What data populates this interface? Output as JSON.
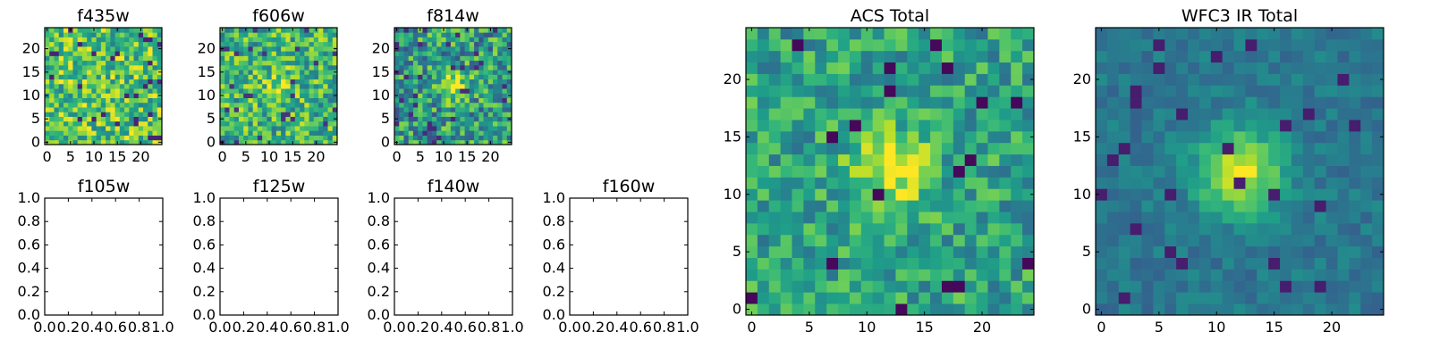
{
  "chart_data": [
    {
      "type": "heatmap",
      "title": "f435w",
      "grid_size": 25,
      "xlim": [
        -0.5,
        24.5
      ],
      "ylim": [
        -0.5,
        24.5
      ],
      "xticks": [
        0,
        5,
        10,
        15,
        20
      ],
      "yticks": [
        0,
        5,
        10,
        15,
        20
      ],
      "colormap": "viridis",
      "cells": "noise field, 25x25 pixels, mostly green-yellow"
    },
    {
      "type": "heatmap",
      "title": "f606w",
      "grid_size": 25,
      "xlim": [
        -0.5,
        24.5
      ],
      "ylim": [
        -0.5,
        24.5
      ],
      "xticks": [
        0,
        5,
        10,
        15,
        20
      ],
      "yticks": [
        0,
        5,
        10,
        15,
        20
      ],
      "colormap": "viridis",
      "cells": "noise field with faint source near (12, 12)"
    },
    {
      "type": "heatmap",
      "title": "f814w",
      "grid_size": 25,
      "xlim": [
        -0.5,
        24.5
      ],
      "ylim": [
        -0.5,
        24.5
      ],
      "xticks": [
        0,
        5,
        10,
        15,
        20
      ],
      "yticks": [
        0,
        5,
        10,
        15,
        20
      ],
      "colormap": "viridis",
      "cells": "noise field with source near (12, 12)"
    },
    {
      "type": "heatmap",
      "title": "f105w",
      "xlim": [
        0,
        1
      ],
      "ylim": [
        0,
        1
      ],
      "xticks": [
        "0.0",
        "0.2",
        "0.4",
        "0.6",
        "0.8",
        "1.0"
      ],
      "yticks": [
        "0.0",
        "0.2",
        "0.4",
        "0.6",
        "0.8",
        "1.0"
      ],
      "empty": true
    },
    {
      "type": "heatmap",
      "title": "f125w",
      "xlim": [
        0,
        1
      ],
      "ylim": [
        0,
        1
      ],
      "xticks": [
        "0.0",
        "0.2",
        "0.4",
        "0.6",
        "0.8",
        "1.0"
      ],
      "yticks": [
        "0.0",
        "0.2",
        "0.4",
        "0.6",
        "0.8",
        "1.0"
      ],
      "empty": true
    },
    {
      "type": "heatmap",
      "title": "f140w",
      "xlim": [
        0,
        1
      ],
      "ylim": [
        0,
        1
      ],
      "xticks": [
        "0.0",
        "0.2",
        "0.4",
        "0.6",
        "0.8",
        "1.0"
      ],
      "yticks": [
        "0.0",
        "0.2",
        "0.4",
        "0.6",
        "0.8",
        "1.0"
      ],
      "empty": true
    },
    {
      "type": "heatmap",
      "title": "f160w",
      "xlim": [
        0,
        1
      ],
      "ylim": [
        0,
        1
      ],
      "xticks": [
        "0.0",
        "0.2",
        "0.4",
        "0.6",
        "0.8",
        "1.0"
      ],
      "yticks": [
        "0.0",
        "0.2",
        "0.4",
        "0.6",
        "0.8",
        "1.0"
      ],
      "empty": true
    },
    {
      "type": "heatmap",
      "title": "ACS Total",
      "grid_size": 25,
      "xlim": [
        -0.5,
        24.5
      ],
      "ylim": [
        -0.5,
        24.5
      ],
      "xticks": [
        0,
        5,
        10,
        15,
        20
      ],
      "yticks": [
        0,
        5,
        10,
        15,
        20
      ],
      "colormap": "viridis",
      "cells": "noisy field, bright source centered near (12, 12)"
    },
    {
      "type": "heatmap",
      "title": "WFC3 IR Total",
      "grid_size": 25,
      "xlim": [
        -0.5,
        24.5
      ],
      "ylim": [
        -0.5,
        24.5
      ],
      "xticks": [
        0,
        5,
        10,
        15,
        20
      ],
      "yticks": [
        0,
        5,
        10,
        15,
        20
      ],
      "colormap": "viridis",
      "cells": "smooth blue-green background, bright compact source near (12, 12)"
    }
  ]
}
